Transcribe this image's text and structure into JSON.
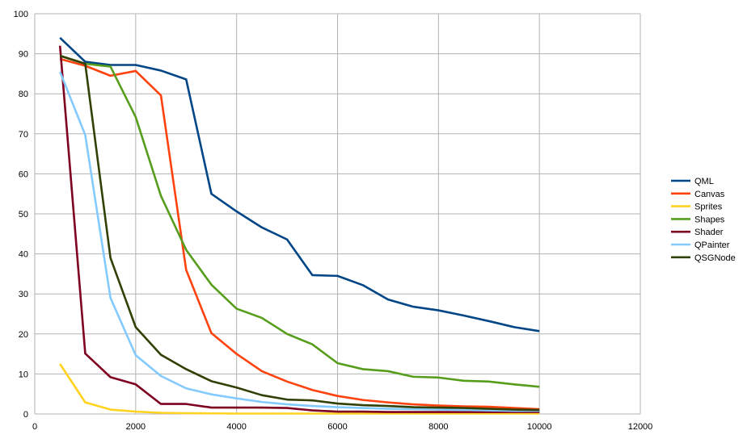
{
  "chart_data": {
    "type": "line",
    "title": "",
    "xlabel": "",
    "ylabel": "",
    "xlim": [
      0,
      12000
    ],
    "ylim": [
      0,
      100
    ],
    "xticks": [
      0,
      2000,
      4000,
      6000,
      8000,
      10000,
      12000
    ],
    "yticks": [
      0,
      10,
      20,
      30,
      40,
      50,
      60,
      70,
      80,
      90,
      100
    ],
    "xtick_labels": [
      "0",
      "2000",
      "4000",
      "6000",
      "8000",
      "10000",
      "12000"
    ],
    "ytick_labels": [
      "0",
      "10",
      "20",
      "30",
      "40",
      "50",
      "60",
      "70",
      "80",
      "90",
      "100"
    ],
    "grid": true,
    "legend_position": "right",
    "x": [
      500,
      1000,
      1500,
      2000,
      2500,
      3000,
      3500,
      4000,
      4500,
      5000,
      5500,
      6000,
      6500,
      7000,
      7500,
      8000,
      8500,
      9000,
      9500,
      10000
    ],
    "series": [
      {
        "name": "QML",
        "color": "#004586",
        "values": [
          94,
          88,
          87.2,
          87.2,
          85.8,
          83.6,
          55,
          50.6,
          46.6,
          43.6,
          34.7,
          34.5,
          32.2,
          28.6,
          26.8,
          25.9,
          24.6,
          23.2,
          21.7,
          20.7
        ]
      },
      {
        "name": "Canvas",
        "color": "#ff420e",
        "values": [
          88.7,
          87,
          84.5,
          85.7,
          79.6,
          36,
          20.2,
          15,
          10.7,
          8.1,
          6,
          4.5,
          3.5,
          2.9,
          2.4,
          2.1,
          1.9,
          1.8,
          1.5,
          1.2
        ]
      },
      {
        "name": "Sprites",
        "color": "#ffd320",
        "values": [
          12.5,
          2.9,
          1.1,
          0.6,
          0.3,
          0.2,
          0.15,
          0.1,
          0.1,
          0.1,
          0.1,
          0.1,
          0.1,
          0.1,
          0.1,
          0.1,
          0.1,
          0.1,
          0.1,
          0.1
        ]
      },
      {
        "name": "Shapes",
        "color": "#579d1c",
        "values": [
          89.5,
          87.5,
          86.8,
          74.2,
          54.5,
          41,
          32.3,
          26.3,
          24,
          20,
          17.4,
          12.7,
          11.2,
          10.7,
          9.3,
          9.1,
          8.3,
          8.1,
          7.4,
          6.8
        ]
      },
      {
        "name": "Shader",
        "color": "#7e0021",
        "values": [
          92,
          15.1,
          9.2,
          7.4,
          2.5,
          2.5,
          1.6,
          1.6,
          1.6,
          1.5,
          0.9,
          0.6,
          0.6,
          0.5,
          0.5,
          0.5,
          0.5,
          0.5,
          0.5,
          0.5
        ]
      },
      {
        "name": "QPainter",
        "color": "#83caff",
        "values": [
          85.5,
          69.7,
          29,
          14.7,
          9.5,
          6.4,
          4.9,
          3.9,
          3,
          2.4,
          2,
          1.7,
          1.5,
          1.3,
          1.2,
          1.1,
          1,
          0.9,
          0.8,
          0.8
        ]
      },
      {
        "name": "QSGNode",
        "color": "#314004",
        "values": [
          89.5,
          87.5,
          39,
          21.7,
          14.8,
          11.2,
          8.2,
          6.6,
          4.7,
          3.6,
          3.4,
          2.6,
          2.2,
          2,
          1.7,
          1.6,
          1.5,
          1.3,
          1.1,
          1
        ]
      }
    ]
  }
}
